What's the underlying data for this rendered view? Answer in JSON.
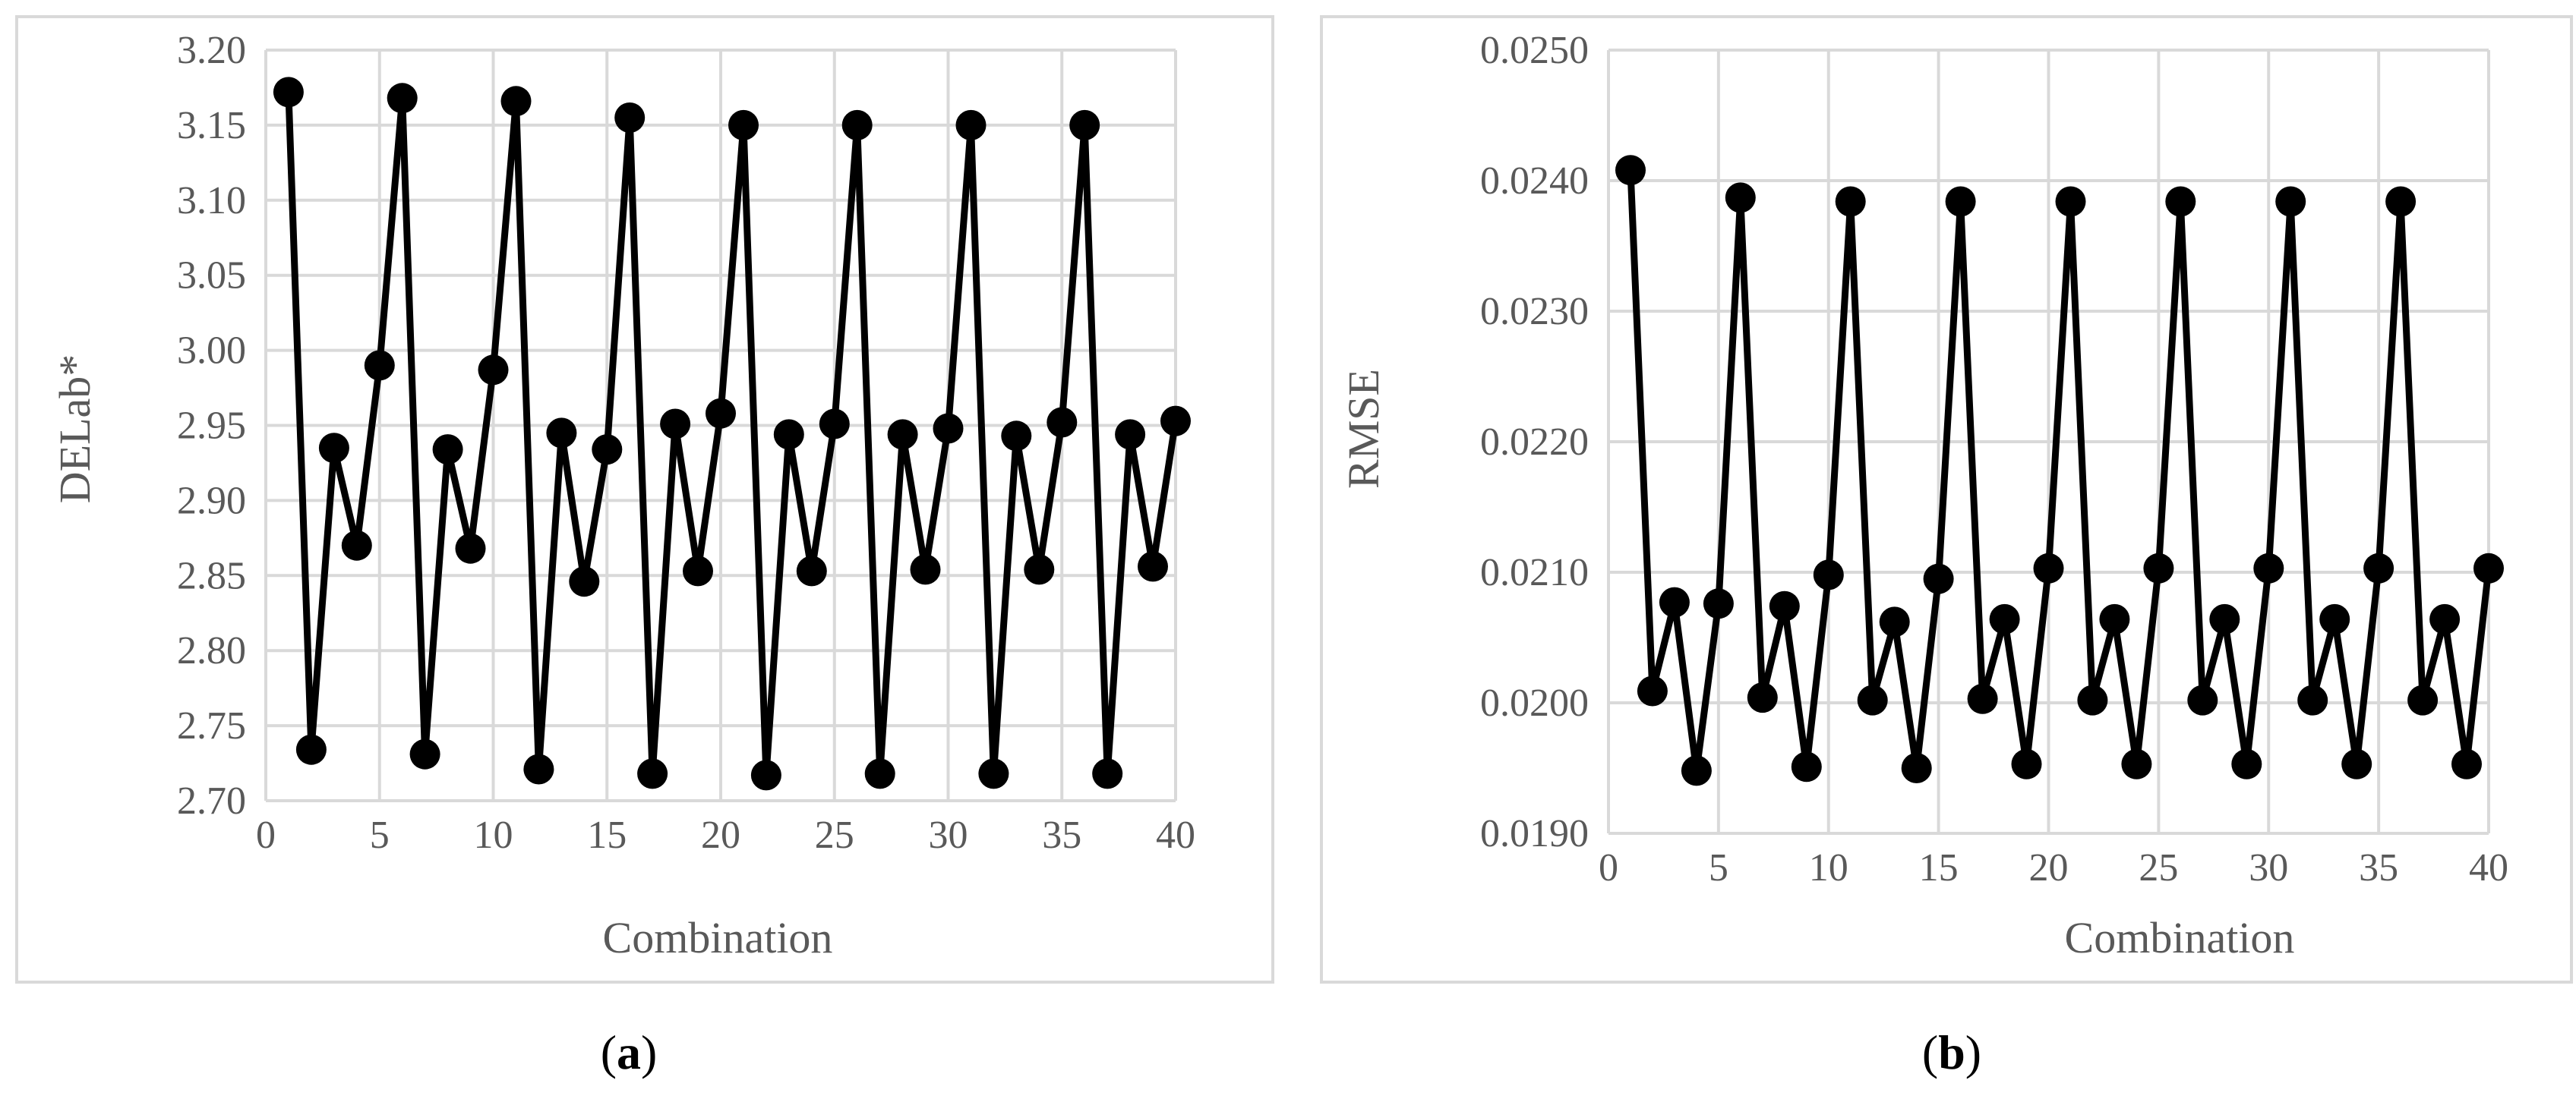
{
  "chart_data": [
    {
      "type": "line",
      "caption_letter": "a",
      "xlabel": "Combination",
      "ylabel": "DELab*",
      "xlim": [
        0,
        40
      ],
      "ylim": [
        2.7,
        3.2
      ],
      "x_ticks": [
        "0",
        "5",
        "10",
        "15",
        "20",
        "25",
        "30",
        "35",
        "40"
      ],
      "y_ticks": [
        "2.70",
        "2.75",
        "2.80",
        "2.85",
        "2.90",
        "2.95",
        "3.00",
        "3.05",
        "3.10",
        "3.15",
        "3.20"
      ],
      "grid": true,
      "series": [
        {
          "x": [
            1,
            2,
            3,
            4,
            5,
            6,
            7,
            8,
            9,
            10,
            11,
            12,
            13,
            14,
            15,
            16,
            17,
            18,
            19,
            20,
            21,
            22,
            23,
            24,
            25,
            26,
            27,
            28,
            29,
            30,
            31,
            32,
            33,
            34,
            35,
            36,
            37,
            38,
            39,
            40
          ],
          "values": [
            3.172,
            2.734,
            2.935,
            2.87,
            2.99,
            3.168,
            2.731,
            2.934,
            2.868,
            2.987,
            3.166,
            2.721,
            2.945,
            2.846,
            2.934,
            3.155,
            2.718,
            2.951,
            2.853,
            2.958,
            3.15,
            2.717,
            2.944,
            2.853,
            2.951,
            3.15,
            2.718,
            2.944,
            2.854,
            2.948,
            3.15,
            2.718,
            2.943,
            2.854,
            2.952,
            3.15,
            2.718,
            2.944,
            2.856,
            2.953
          ]
        }
      ]
    },
    {
      "type": "line",
      "caption_letter": "b",
      "xlabel": "Combination",
      "ylabel": "RMSE",
      "xlim": [
        0,
        40
      ],
      "ylim": [
        0.019,
        0.025
      ],
      "x_ticks": [
        "0",
        "5",
        "10",
        "15",
        "20",
        "25",
        "30",
        "35",
        "40"
      ],
      "y_ticks": [
        "0.0190",
        "0.0200",
        "0.0210",
        "0.0220",
        "0.0230",
        "0.0240",
        "0.0250"
      ],
      "grid": true,
      "series": [
        {
          "x": [
            1,
            2,
            3,
            4,
            5,
            6,
            7,
            8,
            9,
            10,
            11,
            12,
            13,
            14,
            15,
            16,
            17,
            18,
            19,
            20,
            21,
            22,
            23,
            24,
            25,
            26,
            27,
            28,
            29,
            30,
            31,
            32,
            33,
            34,
            35,
            36,
            37,
            38,
            39,
            40
          ],
          "values": [
            0.02408,
            0.02009,
            0.02077,
            0.01948,
            0.02076,
            0.02387,
            0.02004,
            0.02074,
            0.01951,
            0.02098,
            0.02384,
            0.02002,
            0.02062,
            0.0195,
            0.02095,
            0.02384,
            0.02003,
            0.02064,
            0.01953,
            0.02103,
            0.02384,
            0.02002,
            0.02064,
            0.01953,
            0.02103,
            0.02384,
            0.02002,
            0.02064,
            0.01953,
            0.02103,
            0.02384,
            0.02002,
            0.02064,
            0.01953,
            0.02103,
            0.02384,
            0.02002,
            0.02064,
            0.01953,
            0.02103
          ]
        }
      ]
    }
  ]
}
